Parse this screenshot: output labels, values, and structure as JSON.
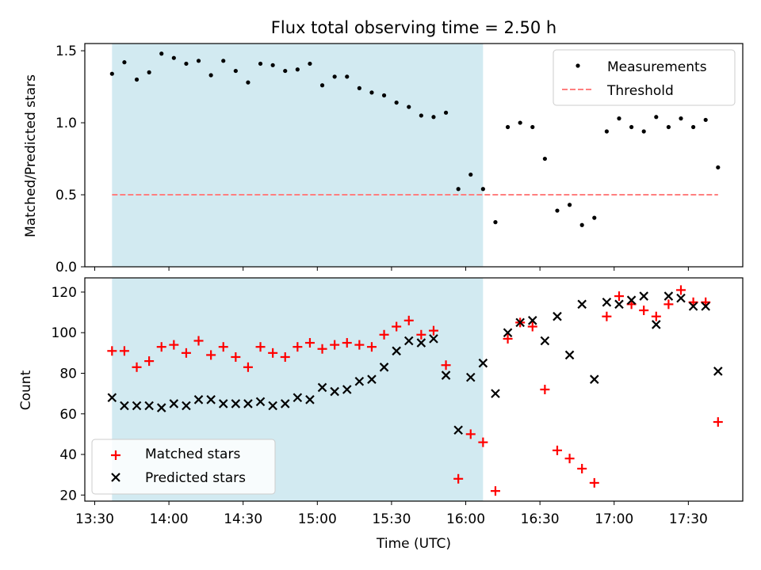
{
  "chart_data": {
    "type": "scatter",
    "title": "Flux total observing time = 2.50 h",
    "xlabel": "Time (UTC)",
    "x_ticks": [
      "13:30",
      "14:00",
      "14:30",
      "15:00",
      "15:30",
      "16:00",
      "16:30",
      "17:00",
      "17:30"
    ],
    "x_range": [
      "13:26",
      "17:52"
    ],
    "shaded_interval": [
      "13:37",
      "16:07"
    ],
    "colors": {
      "shade": "#add8e6",
      "threshold": "#ff7f7f",
      "matched": "#ff0000",
      "predicted": "#000000",
      "measurements": "#000000"
    },
    "top_panel": {
      "ylabel": "Matched/Predicted stars",
      "ylim": [
        0,
        1.55
      ],
      "y_ticks": [
        "0.0",
        "0.5",
        "1.0",
        "1.5"
      ],
      "legend_position": "upper right",
      "threshold": {
        "name": "Threshold",
        "value": 0.5,
        "x_start": "13:37",
        "x_end": "17:42"
      },
      "series": [
        {
          "name": "Measurements",
          "x": [
            "13:37",
            "13:42",
            "13:47",
            "13:52",
            "13:57",
            "14:02",
            "14:07",
            "14:12",
            "14:17",
            "14:22",
            "14:27",
            "14:32",
            "14:37",
            "14:42",
            "14:47",
            "14:52",
            "14:57",
            "15:02",
            "15:07",
            "15:12",
            "15:17",
            "15:22",
            "15:27",
            "15:32",
            "15:37",
            "15:42",
            "15:47",
            "15:52",
            "15:57",
            "16:02",
            "16:07",
            "16:12",
            "16:17",
            "16:22",
            "16:27",
            "16:32",
            "16:37",
            "16:42",
            "16:47",
            "16:52",
            "16:57",
            "17:02",
            "17:07",
            "17:12",
            "17:17",
            "17:22",
            "17:27",
            "17:32",
            "17:37",
            "17:42"
          ],
          "y": [
            1.34,
            1.42,
            1.3,
            1.35,
            1.48,
            1.45,
            1.41,
            1.43,
            1.33,
            1.43,
            1.36,
            1.28,
            1.41,
            1.4,
            1.36,
            1.37,
            1.41,
            1.26,
            1.32,
            1.32,
            1.24,
            1.21,
            1.19,
            1.14,
            1.11,
            1.05,
            1.04,
            1.07,
            0.54,
            0.64,
            0.54,
            0.31,
            0.97,
            1.0,
            0.97,
            0.75,
            0.39,
            0.43,
            0.29,
            0.34,
            0.94,
            1.03,
            0.97,
            0.94,
            1.04,
            0.97,
            1.03,
            0.97,
            1.02,
            0.69
          ]
        }
      ]
    },
    "bottom_panel": {
      "ylabel": "Count",
      "ylim": [
        17,
        127
      ],
      "y_ticks": [
        "20",
        "40",
        "60",
        "80",
        "100",
        "120"
      ],
      "legend_position": "lower left",
      "series": [
        {
          "name": "Matched stars",
          "x": [
            "13:37",
            "13:42",
            "13:47",
            "13:52",
            "13:57",
            "14:02",
            "14:07",
            "14:12",
            "14:17",
            "14:22",
            "14:27",
            "14:32",
            "14:37",
            "14:42",
            "14:47",
            "14:52",
            "14:57",
            "15:02",
            "15:07",
            "15:12",
            "15:17",
            "15:22",
            "15:27",
            "15:32",
            "15:37",
            "15:42",
            "15:47",
            "15:52",
            "15:57",
            "16:02",
            "16:07",
            "16:12",
            "16:17",
            "16:22",
            "16:27",
            "16:32",
            "16:37",
            "16:42",
            "16:47",
            "16:52",
            "16:57",
            "17:02",
            "17:07",
            "17:12",
            "17:17",
            "17:22",
            "17:27",
            "17:32",
            "17:37",
            "17:42"
          ],
          "y": [
            91,
            91,
            83,
            86,
            93,
            94,
            90,
            96,
            89,
            93,
            88,
            83,
            93,
            90,
            88,
            93,
            95,
            92,
            94,
            95,
            94,
            93,
            99,
            103,
            106,
            99,
            101,
            84,
            28,
            50,
            46,
            22,
            97,
            105,
            103,
            72,
            42,
            38,
            33,
            26,
            108,
            118,
            114,
            111,
            108,
            114,
            121,
            115,
            115,
            56
          ]
        },
        {
          "name": "Predicted stars",
          "x": [
            "13:37",
            "13:42",
            "13:47",
            "13:52",
            "13:57",
            "14:02",
            "14:07",
            "14:12",
            "14:17",
            "14:22",
            "14:27",
            "14:32",
            "14:37",
            "14:42",
            "14:47",
            "14:52",
            "14:57",
            "15:02",
            "15:07",
            "15:12",
            "15:17",
            "15:22",
            "15:27",
            "15:32",
            "15:37",
            "15:42",
            "15:47",
            "15:52",
            "15:57",
            "16:02",
            "16:07",
            "16:12",
            "16:17",
            "16:22",
            "16:27",
            "16:32",
            "16:37",
            "16:42",
            "16:47",
            "16:52",
            "16:57",
            "17:02",
            "17:07",
            "17:12",
            "17:17",
            "17:22",
            "17:27",
            "17:32",
            "17:37",
            "17:42"
          ],
          "y": [
            68,
            64,
            64,
            64,
            63,
            65,
            64,
            67,
            67,
            65,
            65,
            65,
            66,
            64,
            65,
            68,
            67,
            73,
            71,
            72,
            76,
            77,
            83,
            91,
            96,
            95,
            97,
            79,
            52,
            78,
            85,
            70,
            100,
            105,
            106,
            96,
            108,
            89,
            114,
            77,
            115,
            114,
            116,
            118,
            104,
            118,
            117,
            113,
            113,
            81
          ]
        }
      ]
    }
  }
}
